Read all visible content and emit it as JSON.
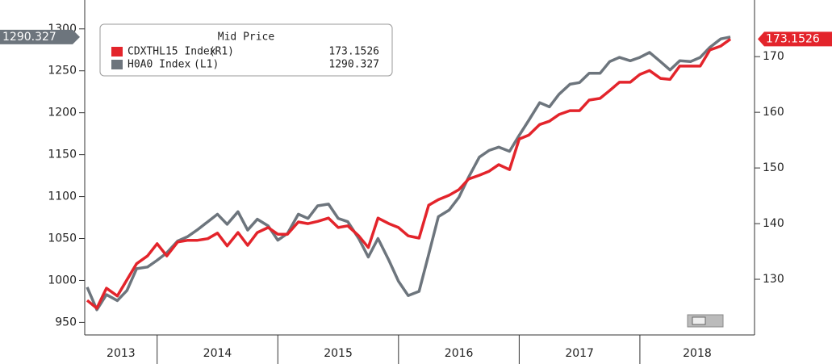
{
  "chart_data": {
    "type": "line",
    "legend_title": "Mid Price",
    "x": [
      2013.42,
      2013.5,
      2013.58,
      2013.67,
      2013.75,
      2013.83,
      2013.92,
      2014.0,
      2014.08,
      2014.17,
      2014.25,
      2014.33,
      2014.42,
      2014.5,
      2014.58,
      2014.67,
      2014.75,
      2014.83,
      2014.92,
      2015.0,
      2015.08,
      2015.17,
      2015.25,
      2015.33,
      2015.42,
      2015.5,
      2015.58,
      2015.67,
      2015.75,
      2015.83,
      2015.92,
      2016.0,
      2016.08,
      2016.17,
      2016.25,
      2016.33,
      2016.42,
      2016.5,
      2016.58,
      2016.67,
      2016.75,
      2016.83,
      2016.92,
      2017.0,
      2017.08,
      2017.17,
      2017.25,
      2017.33,
      2017.42,
      2017.5,
      2017.58,
      2017.67,
      2017.75,
      2017.83,
      2017.92,
      2018.0,
      2018.08,
      2018.17,
      2018.25,
      2018.33,
      2018.42,
      2018.5,
      2018.58,
      2018.67,
      2018.75
    ],
    "xlim": [
      2013.4,
      2018.95
    ],
    "xticks": [
      {
        "value": 2013,
        "label": "2013"
      },
      {
        "value": 2014,
        "label": "2014"
      },
      {
        "value": 2015,
        "label": "2015"
      },
      {
        "value": 2016,
        "label": "2016"
      },
      {
        "value": 2017,
        "label": "2017"
      },
      {
        "value": 2018,
        "label": "2018"
      }
    ],
    "ylim": [
      935,
      1320
    ],
    "yticks": [
      950,
      1000,
      1050,
      1100,
      1150,
      1200,
      1250,
      1300
    ],
    "y2lim": [
      120,
      178
    ],
    "y2ticks": [
      130,
      140,
      150,
      160,
      170
    ],
    "series": [
      {
        "name": "CDXTHL15 Index",
        "axis_label": "(R1)",
        "color": "#e3242b",
        "axis": "y2",
        "values": [
          126.2,
          124.8,
          128.4,
          127.0,
          129.9,
          132.8,
          134.2,
          136.4,
          134.2,
          136.7,
          137.0,
          137.0,
          137.3,
          138.3,
          136.0,
          138.4,
          136.1,
          138.4,
          139.3,
          138.1,
          138.1,
          140.3,
          140.0,
          140.4,
          141.0,
          139.3,
          139.6,
          137.8,
          135.7,
          141.0,
          140.0,
          139.3,
          137.8,
          137.4,
          143.3,
          144.3,
          145.1,
          146.1,
          148.0,
          148.7,
          149.4,
          150.6,
          149.7,
          155.2,
          155.9,
          157.8,
          158.4,
          159.6,
          160.3,
          160.3,
          162.2,
          162.5,
          163.9,
          165.4,
          165.4,
          166.8,
          167.5,
          166.1,
          165.9,
          168.3,
          168.3,
          168.3,
          171.2,
          171.9,
          173.1526
        ]
      },
      {
        "name": "H0A0 Index",
        "axis_label": "(L1)",
        "color": "#6d757d",
        "axis": "y",
        "values": [
          992,
          965,
          983,
          976,
          988,
          1014,
          1016,
          1024,
          1033,
          1047,
          1052,
          1060,
          1070,
          1079,
          1067,
          1082,
          1060,
          1073,
          1065,
          1048,
          1056,
          1079,
          1074,
          1089,
          1091,
          1074,
          1070,
          1050,
          1028,
          1050,
          1024,
          999,
          982,
          987,
          1031,
          1076,
          1084,
          1099,
          1123,
          1147,
          1155,
          1159,
          1154,
          1173,
          1191,
          1212,
          1207,
          1222,
          1234,
          1236,
          1247,
          1247,
          1261,
          1266,
          1262,
          1266,
          1272,
          1261,
          1251,
          1262,
          1261,
          1266,
          1278,
          1288,
          1290.327
        ]
      }
    ]
  }
}
